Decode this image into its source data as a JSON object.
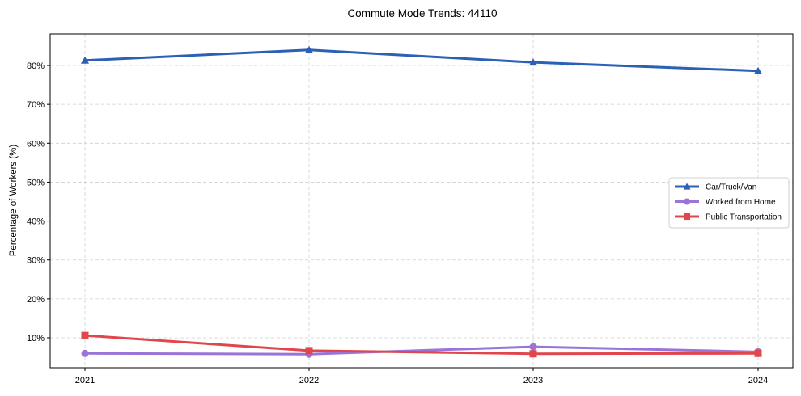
{
  "chart_data": {
    "type": "line",
    "title": "Commute Mode Trends: 44110",
    "xlabel": "",
    "ylabel": "Percentage of Workers (%)",
    "x": [
      "2021",
      "2022",
      "2023",
      "2024"
    ],
    "y_ticks": [
      10,
      20,
      30,
      40,
      50,
      60,
      70,
      80
    ],
    "y_tick_labels": [
      "10%",
      "20%",
      "30%",
      "40%",
      "50%",
      "60%",
      "70%",
      "80%"
    ],
    "ylim": [
      2,
      88
    ],
    "grid": true,
    "legend_position": "center right",
    "series": [
      {
        "name": "Car/Truck/Van",
        "color": "#2b60b4",
        "marker": "triangle",
        "values": [
          81.3,
          84.0,
          80.8,
          78.6
        ]
      },
      {
        "name": "Worked from Home",
        "color": "#9b74d8",
        "marker": "circle",
        "values": [
          6.0,
          5.8,
          7.7,
          6.4
        ]
      },
      {
        "name": "Public Transportation",
        "color": "#e0474c",
        "marker": "square",
        "values": [
          10.6,
          6.7,
          5.9,
          6.0
        ]
      }
    ]
  }
}
